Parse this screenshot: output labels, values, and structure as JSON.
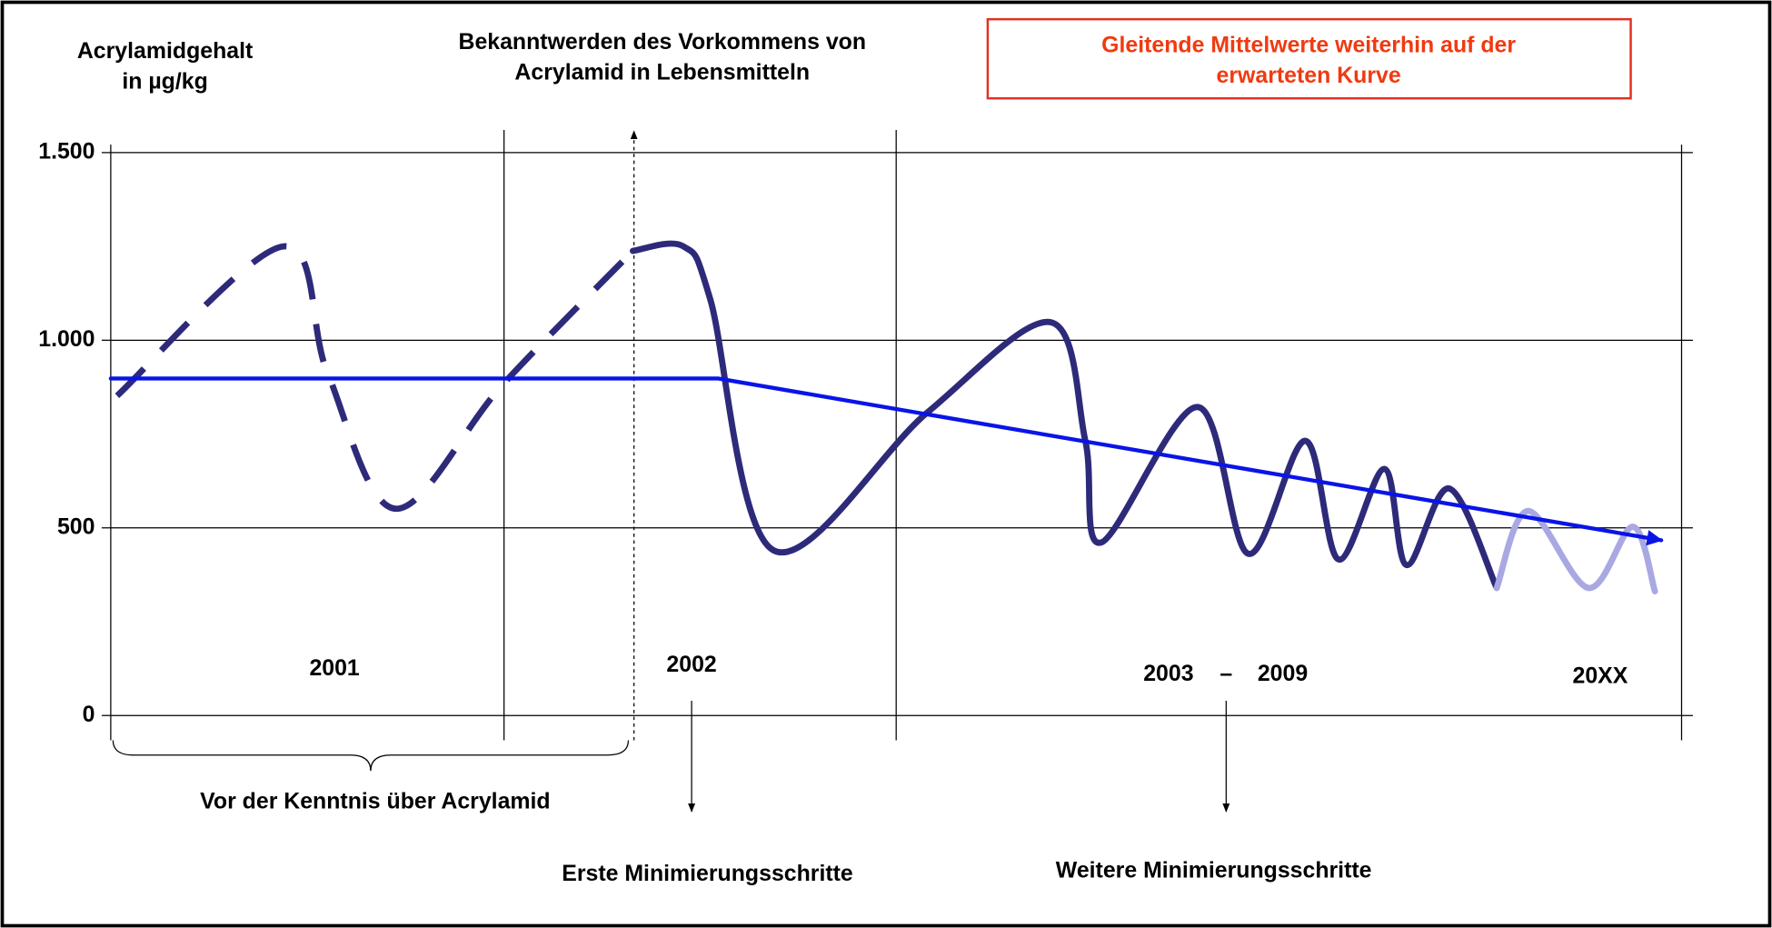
{
  "chart_data": {
    "type": "line",
    "y_label": [
      "Acrylamidgehalt",
      "in µg/kg"
    ],
    "annotations": {
      "discovery": [
        "Bekanntwerden des Vorkommens von",
        "Acrylamid in Lebensmitteln"
      ],
      "box": [
        "Gleitende Mittelwerte weiterhin auf der",
        "erwarteten Kurve"
      ],
      "before": "Vor der Kenntnis über Acrylamid",
      "first_steps": "Erste Minimierungsschritte",
      "further_steps": "Weitere Minimierungsschritte"
    },
    "periods": [
      "2001",
      "2002",
      "2003",
      "–",
      "2009",
      "20XX"
    ],
    "ylim": [
      0,
      1500
    ],
    "yticks": [
      0,
      500,
      {
        "value": 1000,
        "label": "1.000"
      },
      {
        "value": 1500,
        "label": "1.500"
      }
    ],
    "xlim": [
      0,
      100
    ],
    "grid": true,
    "series": [
      {
        "color": "#2e2a7a",
        "dashed": true,
        "x": [
          0.4,
          10.9,
          13.7,
          18,
          24.8,
          33
        ],
        "values": [
          852,
          1250,
          913,
          551,
          883,
          1238
        ]
      },
      {
        "color": "#2e2a7a",
        "dashed": false,
        "x": [
          33,
          36.2,
          37.9,
          41.9,
          51.6,
          59.4,
          61.6,
          62.6,
          68.7,
          71.9,
          75.5,
          77.6,
          80.5,
          81.9,
          84.6,
          87.6
        ],
        "values": [
          1238,
          1250,
          1108,
          440,
          807,
          1048,
          732,
          461,
          822,
          431,
          732,
          416,
          657,
          401,
          605,
          340
        ]
      },
      {
        "color": "#a9a8e2",
        "dashed": false,
        "x": [
          87.6,
          89.6,
          93.4,
          96.2,
          97.6
        ],
        "values": [
          340,
          545,
          340,
          503,
          331
        ]
      },
      {
        "color": "#0a14e6",
        "dashed": false,
        "straight": true,
        "arrow": true,
        "x": [
          0,
          38.4,
          98
        ],
        "values": [
          898,
          898,
          467
        ]
      }
    ]
  }
}
